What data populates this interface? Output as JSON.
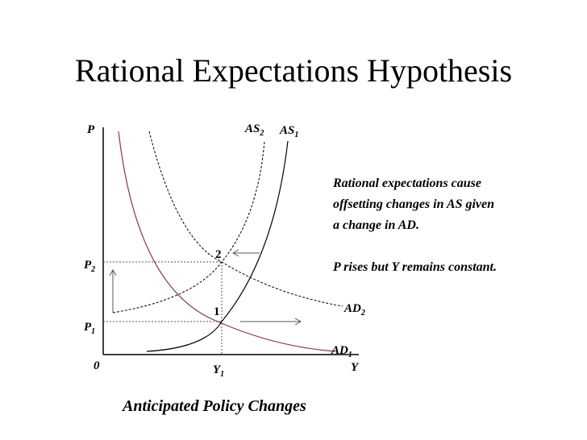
{
  "title": "Rational Expectations Hypothesis",
  "caption": "Anticipated Policy Changes",
  "note": {
    "line1": "Rational expectations cause",
    "line2": "offsetting changes in AS given",
    "line3": "a change in AD.",
    "line4": "P rises but Y remains constant."
  },
  "axes": {
    "y_label": "P",
    "x_label": "Y",
    "origin": "0",
    "p2": {
      "base": "P",
      "sub": "2"
    },
    "p1": {
      "base": "P",
      "sub": "1"
    },
    "y1": {
      "base": "Y",
      "sub": "1"
    }
  },
  "curves": {
    "as2": {
      "base": "AS",
      "sub": "2"
    },
    "as1": {
      "base": "AS",
      "sub": "1"
    },
    "ad2": {
      "base": "AD",
      "sub": "2"
    },
    "ad1": {
      "base": "AD",
      "sub": "1"
    }
  },
  "points": {
    "p1": "1",
    "p2": "2"
  },
  "colors": {
    "ad_curve": "#8b3a3a",
    "as_curve": "#000000",
    "guide": "#555555"
  }
}
